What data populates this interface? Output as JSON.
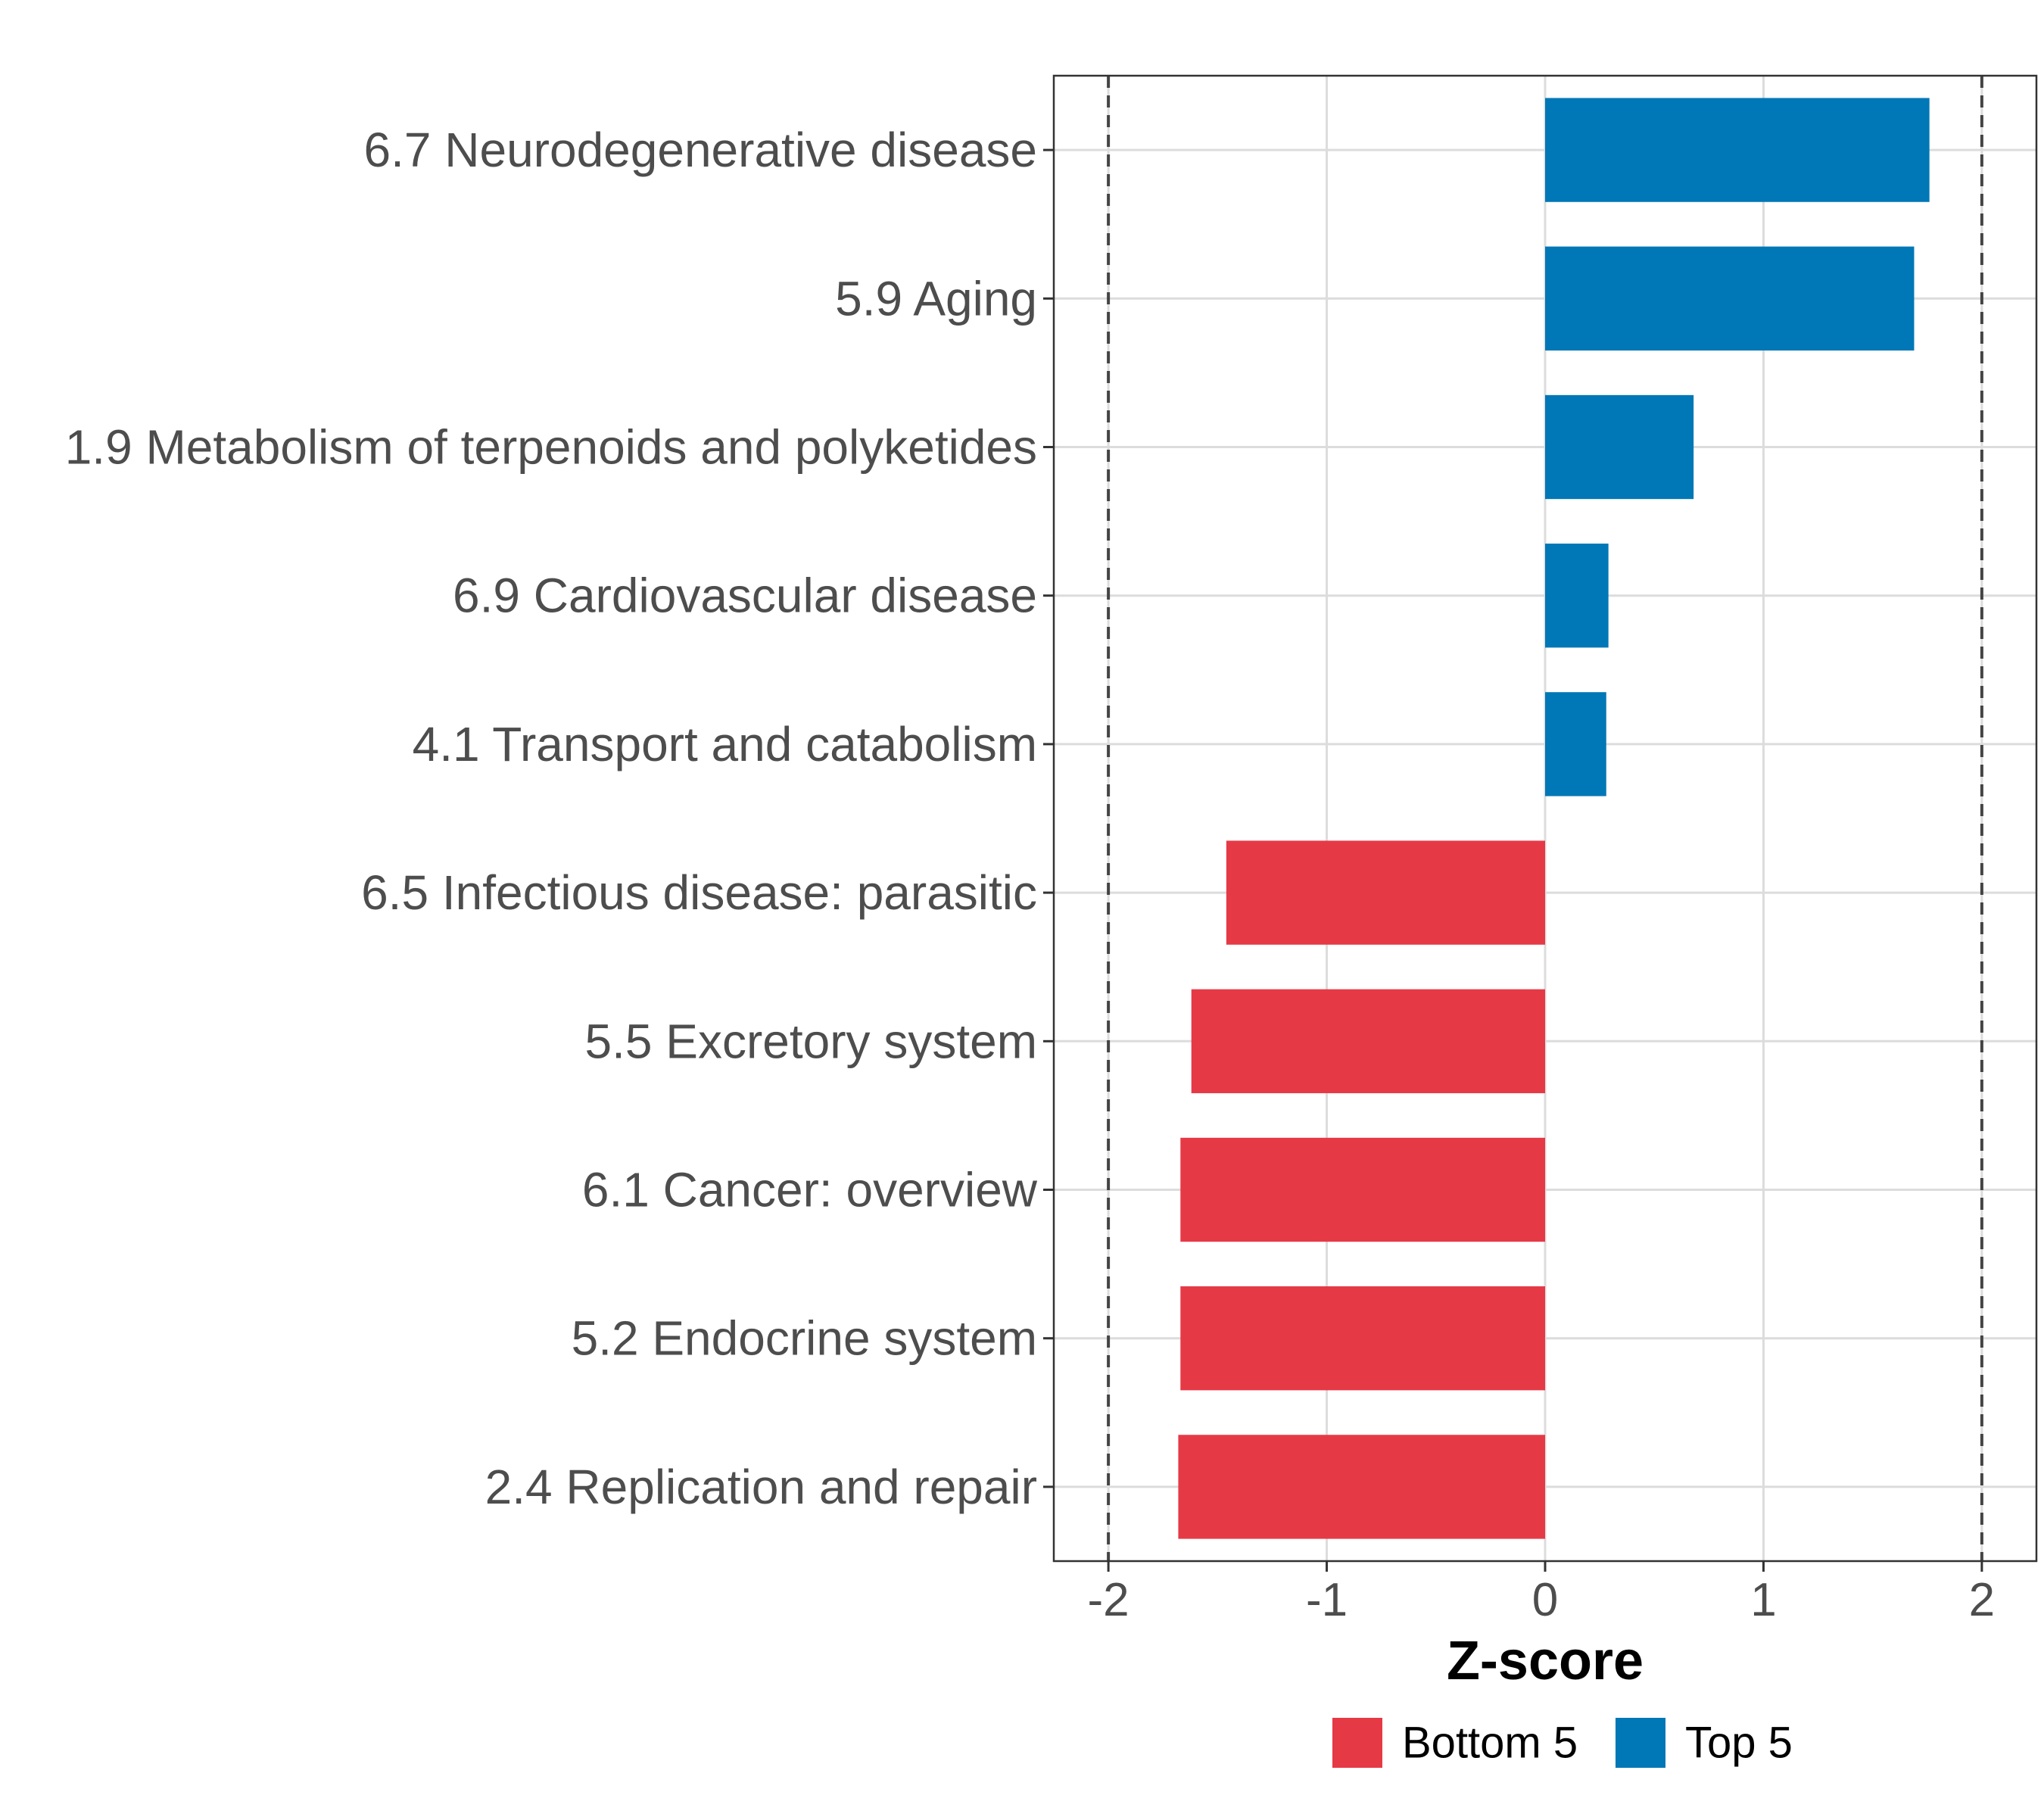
{
  "chart_data": {
    "type": "bar",
    "orientation": "horizontal",
    "title": "",
    "xlabel": "Z-score",
    "ylabel": "",
    "xlim": [
      -2.25,
      2.25
    ],
    "x_ticks": [
      -2,
      -1,
      0,
      1,
      2
    ],
    "x_tick_labels": [
      "-2",
      "-1",
      "0",
      "1",
      "2"
    ],
    "reference_lines": [
      -2,
      2
    ],
    "grid": true,
    "categories": [
      "6.7 Neurodegenerative disease",
      "5.9 Aging",
      "1.9 Metabolism of terpenoids and polyketides",
      "6.9 Cardiovascular disease",
      "4.1 Transport and catabolism",
      "6.5 Infectious disease: parasitic",
      "5.5 Excretory system",
      "6.1 Cancer: overview",
      "5.2 Endocrine system",
      "2.4 Replication and repair"
    ],
    "values": [
      1.76,
      1.69,
      0.68,
      0.29,
      0.28,
      -1.46,
      -1.62,
      -1.67,
      -1.67,
      -1.68
    ],
    "groups": [
      "Top 5",
      "Top 5",
      "Top 5",
      "Top 5",
      "Top 5",
      "Bottom 5",
      "Bottom 5",
      "Bottom 5",
      "Bottom 5",
      "Bottom 5"
    ],
    "legend": {
      "position": "bottom",
      "entries": [
        {
          "label": "Bottom 5",
          "color": "#e63946"
        },
        {
          "label": "Top 5",
          "color": "#0077b6"
        }
      ]
    }
  }
}
